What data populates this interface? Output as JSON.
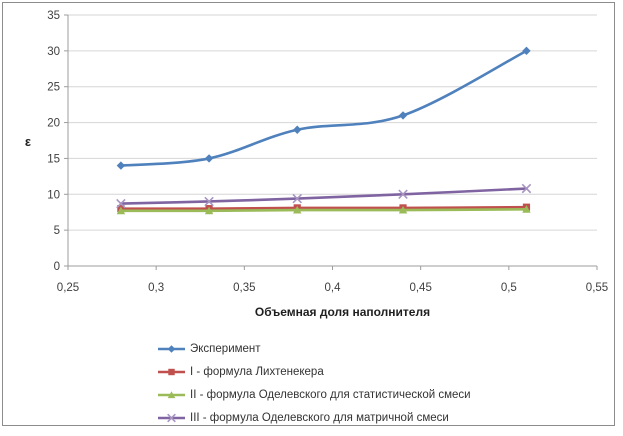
{
  "chart_data": {
    "type": "line",
    "title": "",
    "ylabel": "ε",
    "xlabel": "Объемная доля наполнителя",
    "x_ticks": [
      "0,25",
      "0,3",
      "0,35",
      "0,4",
      "0,45",
      "0,5",
      "0,55"
    ],
    "y_ticks": [
      "0",
      "5",
      "10",
      "15",
      "20",
      "25",
      "30",
      "35"
    ],
    "xlim": [
      0.25,
      0.55
    ],
    "ylim": [
      0,
      35
    ],
    "grid": "horizontal",
    "legend_position": "bottom-left",
    "x": [
      0.28,
      0.33,
      0.38,
      0.44,
      0.51
    ],
    "series": [
      {
        "name": "Эксперимент",
        "marker": "diamond",
        "color": "#4F81BD",
        "values": [
          14,
          15,
          19,
          21,
          30
        ]
      },
      {
        "name": "I - формула Лихтенекера",
        "marker": "square",
        "color": "#C0504D",
        "values": [
          8.0,
          8.0,
          8.1,
          8.1,
          8.2
        ]
      },
      {
        "name": "II - формула Оделевского для статистической смеси",
        "marker": "triangle",
        "color": "#9BBB59",
        "values": [
          7.7,
          7.7,
          7.8,
          7.8,
          7.9
        ]
      },
      {
        "name": "III - формула Оделевского для матричной смеси",
        "marker": "x",
        "color": "#8064A2",
        "marker_color": "#A795C2",
        "values": [
          8.7,
          9.0,
          9.4,
          10.0,
          10.8
        ]
      }
    ],
    "colors": {
      "grid": "#D6D6D6",
      "axis": "#9C9C9C",
      "border": "#8C8C8C",
      "tick_text": "#3F3F3F",
      "title_text": "#1F1F1F"
    }
  }
}
